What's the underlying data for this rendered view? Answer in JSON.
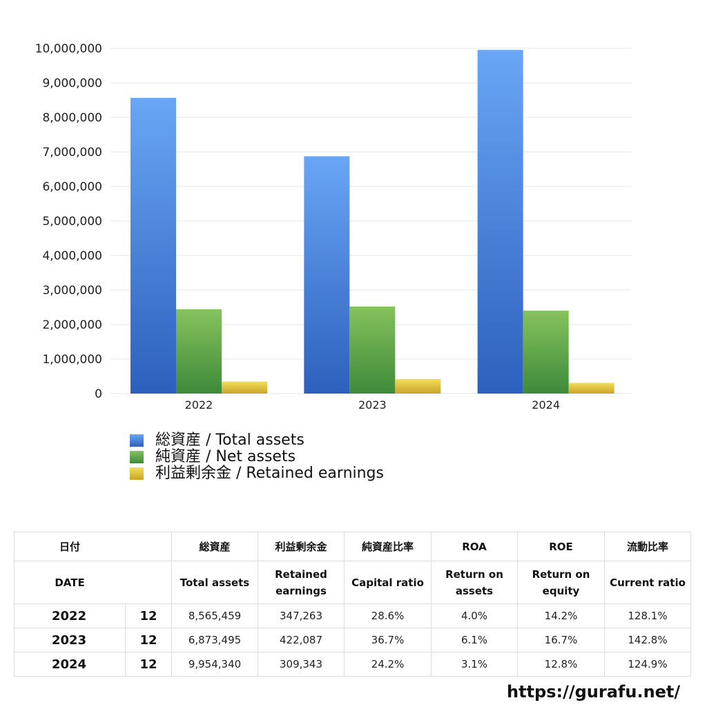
{
  "chart_data": {
    "type": "bar",
    "categories": [
      "2022",
      "2023",
      "2024"
    ],
    "series": [
      {
        "name": "総資産 / Total assets",
        "values": [
          8565459,
          6873495,
          9954340
        ],
        "color_top": "#69a6f5",
        "color_bottom": "#2d60bd"
      },
      {
        "name": "純資産 / Net assets",
        "values": [
          2440000,
          2520000,
          2400000
        ],
        "color_top": "#86c25c",
        "color_bottom": "#3e8a3a"
      },
      {
        "name": "利益剰余金 / Retained earnings",
        "values": [
          347263,
          422087,
          309343
        ],
        "color_top": "#f3de58",
        "color_bottom": "#c9a42c"
      }
    ],
    "yticks": [
      "0",
      "1,000,000",
      "2,000,000",
      "3,000,000",
      "4,000,000",
      "5,000,000",
      "6,000,000",
      "7,000,000",
      "8,000,000",
      "9,000,000",
      "10,000,000"
    ],
    "ylim": [
      0,
      10000000
    ],
    "grid": true,
    "legend_position": "bottom-left"
  },
  "table": {
    "header_jp": [
      "日付",
      "総資産",
      "利益剰余金",
      "純資産比率",
      "ROA",
      "ROE",
      "流動比率"
    ],
    "header_en": {
      "date": "DATE",
      "total_assets": "Total assets",
      "retained_1": "Retained",
      "retained_2": "earnings",
      "capital_ratio": "Capital ratio",
      "roa_1": "Return on",
      "roa_2": "assets",
      "roe_1": "Return on",
      "roe_2": "equity",
      "current_ratio": "Current ratio"
    },
    "rows": [
      {
        "year": "2022",
        "month": "12",
        "total_assets": "8,565,459",
        "retained": "347,263",
        "capital_ratio": "28.6%",
        "roa": "4.0%",
        "roe": "14.2%",
        "current_ratio": "128.1%"
      },
      {
        "year": "2023",
        "month": "12",
        "total_assets": "6,873,495",
        "retained": "422,087",
        "capital_ratio": "36.7%",
        "roa": "6.1%",
        "roe": "16.7%",
        "current_ratio": "142.8%"
      },
      {
        "year": "2024",
        "month": "12",
        "total_assets": "9,954,340",
        "retained": "309,343",
        "capital_ratio": "24.2%",
        "roa": "3.1%",
        "roe": "12.8%",
        "current_ratio": "124.9%"
      }
    ]
  },
  "footer": {
    "url": "https://gurafu.net/"
  }
}
